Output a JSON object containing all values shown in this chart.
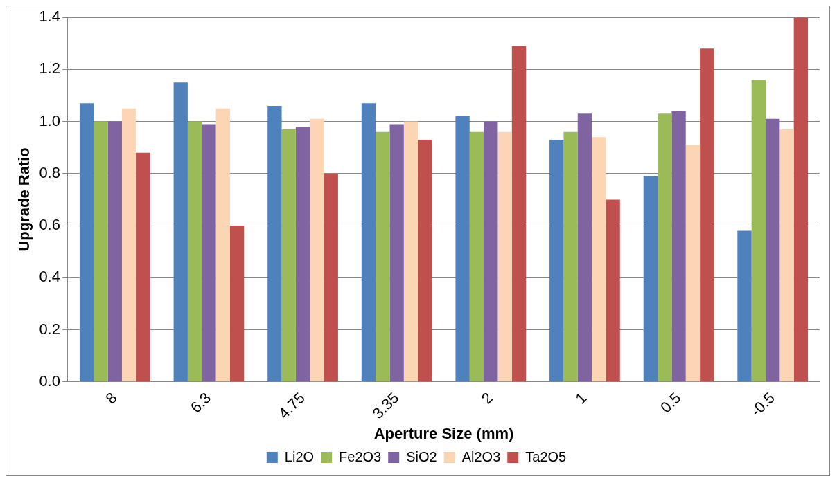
{
  "chart_data": {
    "type": "bar",
    "xlabel": "Aperture Size (mm)",
    "ylabel": "Upgrade Ratio",
    "categories": [
      "8",
      "6.3",
      "4.75",
      "3.35",
      "2",
      "1",
      "0.5",
      "-0.5"
    ],
    "series": [
      {
        "name": "Li2O",
        "color": "#4f81bd",
        "values": [
          1.07,
          1.15,
          1.06,
          1.07,
          1.02,
          0.93,
          0.79,
          0.58
        ]
      },
      {
        "name": "Fe2O3",
        "color": "#9bbb59",
        "values": [
          1.0,
          1.0,
          0.97,
          0.96,
          0.96,
          0.96,
          1.03,
          1.16
        ]
      },
      {
        "name": "SiO2",
        "color": "#8064a2",
        "values": [
          1.0,
          0.99,
          0.98,
          0.99,
          1.0,
          1.03,
          1.04,
          1.01
        ]
      },
      {
        "name": "Al2O3",
        "color": "#fcd5b5",
        "values": [
          1.05,
          1.05,
          1.01,
          1.0,
          0.96,
          0.94,
          0.91,
          0.97
        ]
      },
      {
        "name": "Ta2O5",
        "color": "#c0504d",
        "values": [
          0.88,
          0.6,
          0.8,
          0.93,
          1.29,
          0.7,
          1.28,
          1.4
        ]
      }
    ],
    "ylim": [
      0,
      1.4
    ],
    "yticks": [
      {
        "value": 0,
        "label": "0.0"
      },
      {
        "value": 0.2,
        "label": "0.2"
      },
      {
        "value": 0.4,
        "label": "0.4"
      },
      {
        "value": 0.6,
        "label": "0.6"
      },
      {
        "value": 0.8,
        "label": "0.8"
      },
      {
        "value": 1.0,
        "label": "1.0"
      },
      {
        "value": 1.2,
        "label": "1.2"
      },
      {
        "value": 1.4,
        "label": "1.4"
      }
    ],
    "grid": "y",
    "legend": "bottom"
  }
}
